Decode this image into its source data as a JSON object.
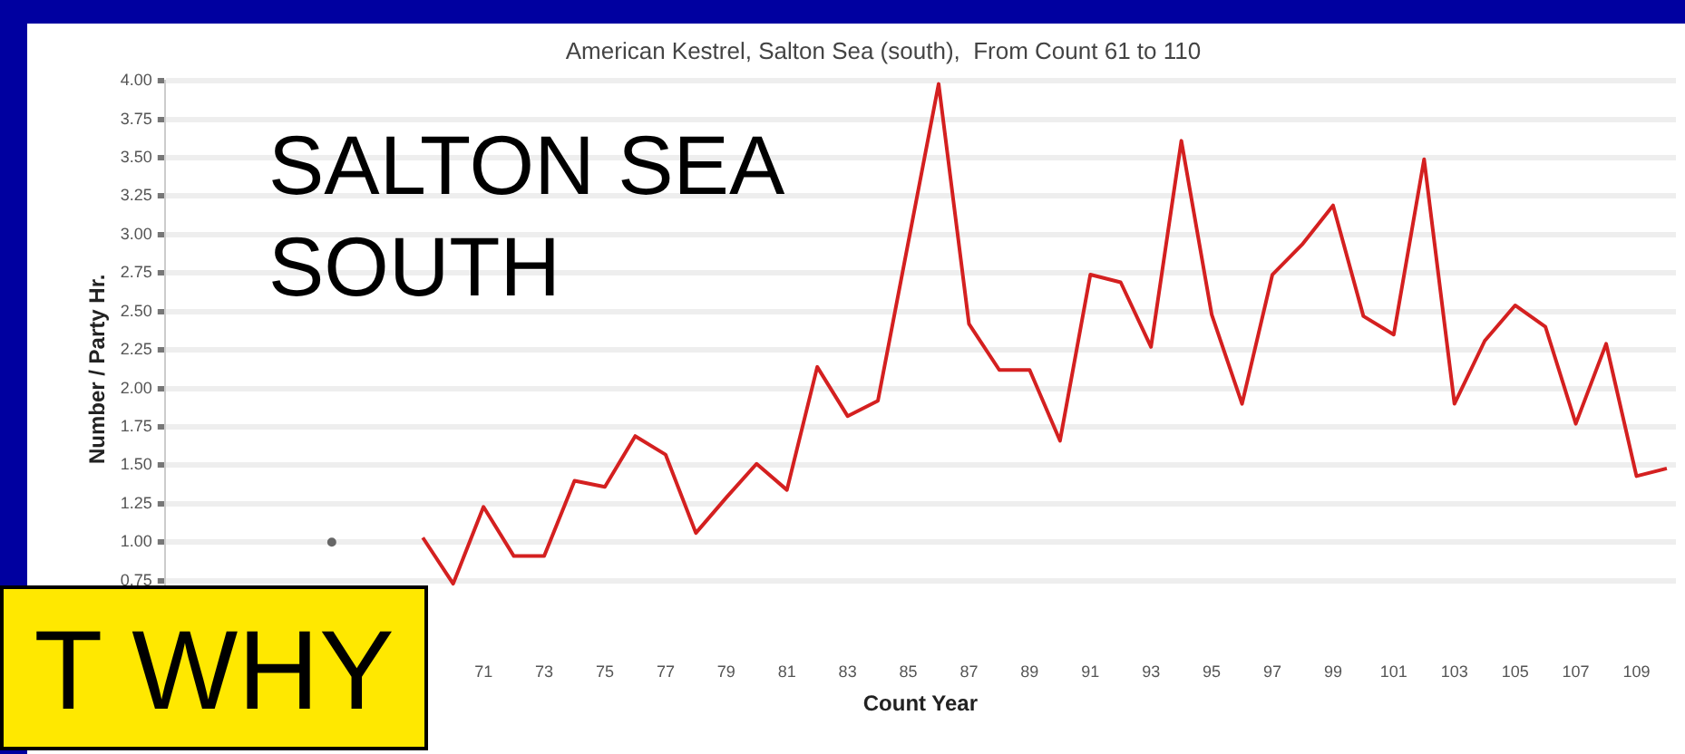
{
  "chart_data": {
    "type": "line",
    "title": "American Kestrel, Salton Sea (south),  From Count 61 to 110",
    "xlabel": "Count Year",
    "ylabel": "Number / Party Hr.",
    "xlim": [
      60.5,
      110.3
    ],
    "xticks": [
      71,
      73,
      75,
      77,
      79,
      81,
      83,
      85,
      87,
      89,
      91,
      93,
      95,
      97,
      99,
      101,
      103,
      105,
      107,
      109
    ],
    "ylim": [
      0.25,
      4.0
    ],
    "yticks": [
      {
        "value": 0.75,
        "label": "0.75"
      },
      {
        "value": 1.0,
        "label": "1.00"
      },
      {
        "value": 1.25,
        "label": "1.25"
      },
      {
        "value": 1.5,
        "label": "1.50"
      },
      {
        "value": 1.75,
        "label": "1.75"
      },
      {
        "value": 2.0,
        "label": "2.00"
      },
      {
        "value": 2.25,
        "label": "2.25"
      },
      {
        "value": 2.5,
        "label": "2.50"
      },
      {
        "value": 2.75,
        "label": "2.75"
      },
      {
        "value": 3.0,
        "label": "3.00"
      },
      {
        "value": 3.25,
        "label": "3.25"
      },
      {
        "value": 3.5,
        "label": "3.50"
      },
      {
        "value": 3.75,
        "label": "3.75"
      },
      {
        "value": 4.0,
        "label": "4.00"
      }
    ],
    "grid": "y",
    "marker": "none",
    "line_style": "solid",
    "series": [
      {
        "color": "#d42020",
        "x": [
          69,
          70,
          71,
          72,
          73,
          74,
          75,
          76,
          77,
          78,
          79,
          80,
          81,
          82,
          83,
          84,
          85,
          86,
          87,
          88,
          89,
          90,
          91,
          92,
          93,
          94,
          95,
          96,
          97,
          98,
          99,
          100,
          101,
          102,
          103,
          104,
          105,
          106,
          107,
          108,
          109,
          110
        ],
        "values": [
          1.03,
          0.73,
          1.23,
          0.91,
          0.91,
          1.4,
          1.36,
          1.69,
          1.57,
          1.06,
          1.29,
          1.51,
          1.34,
          2.14,
          1.82,
          1.92,
          2.95,
          3.98,
          2.42,
          2.12,
          2.12,
          1.66,
          2.74,
          2.69,
          2.27,
          3.61,
          2.48,
          1.9,
          2.74,
          2.94,
          3.19,
          2.47,
          2.35,
          3.49,
          1.9,
          2.31,
          2.54,
          2.4,
          1.77,
          2.29,
          1.43,
          1.48
        ]
      },
      {
        "type": "scatter",
        "color": "#666666",
        "marker": "circle",
        "x": [
          66
        ],
        "values": [
          1.0
        ]
      }
    ],
    "annotations": [
      "SALTON SEA SOUTH",
      "T WHY"
    ]
  }
}
